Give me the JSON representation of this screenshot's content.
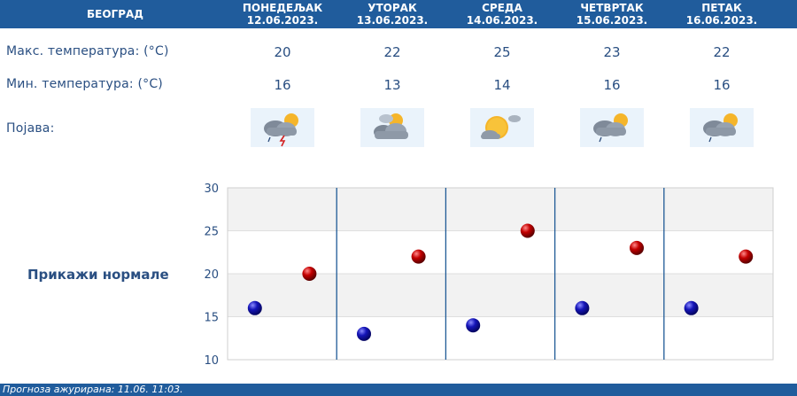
{
  "city": "БЕОГРАД",
  "days": [
    {
      "name": "ПОНЕДЕЉАК",
      "date": "12.06.2023.",
      "max": "20",
      "min": "16",
      "icon": "cloud-sun-rain-thunder-icon"
    },
    {
      "name": "УТОРАК",
      "date": "13.06.2023.",
      "max": "22",
      "min": "13",
      "icon": "sun-behind-clouds-icon"
    },
    {
      "name": "СРЕДА",
      "date": "14.06.2023.",
      "max": "25",
      "min": "14",
      "icon": "sun-small-cloud-icon"
    },
    {
      "name": "ЧЕТВРТАК",
      "date": "15.06.2023.",
      "max": "23",
      "min": "16",
      "icon": "cloud-sun-rain-icon"
    },
    {
      "name": "ПЕТАК",
      "date": "16.06.2023.",
      "max": "22",
      "min": "16",
      "icon": "cloud-sun-rain-icon"
    }
  ],
  "labels": {
    "max": "Макс. температура: (°C)",
    "min": "Мин. температура: (°C)",
    "phenomena": "Појава:"
  },
  "show_normals": "Прикажи нормале",
  "footer": "Прогноза ажурирана:  11.06.  11:03.",
  "colors": {
    "header": "#205c9c",
    "text": "#2a4f82",
    "max_marker": "#c40000",
    "min_marker": "#1515b8",
    "separator": "#1f5a96"
  },
  "chart_data": {
    "type": "scatter",
    "categories": [
      "12.06.2023.",
      "13.06.2023.",
      "14.06.2023.",
      "15.06.2023.",
      "16.06.2023."
    ],
    "series": [
      {
        "values": [
          16,
          13,
          14,
          16,
          16
        ],
        "color": "#1515b8"
      },
      {
        "values": [
          20,
          22,
          25,
          23,
          22
        ],
        "color": "#c40000"
      }
    ],
    "yticks": [
      30,
      25,
      20,
      15,
      10
    ],
    "ylim": [
      10,
      30
    ],
    "grid": true
  }
}
